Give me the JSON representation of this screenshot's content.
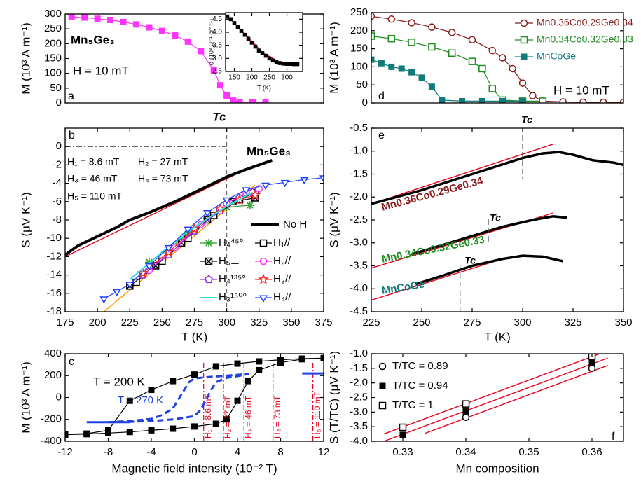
{
  "chart_data": [
    {
      "type": "line",
      "y_label": "M (10³ A m⁻¹)",
      "xlim": [
        175,
        375
      ],
      "ylim": [
        0,
        300
      ],
      "yticks": [
        0,
        50,
        100,
        150,
        200,
        250,
        300
      ],
      "annotations": [
        "Mn₅Ge₃",
        "H = 10 mT",
        "a"
      ],
      "series": [
        {
          "color": "#ff33ff",
          "marker": "square",
          "line": true,
          "x": [
            180,
            190,
            200,
            210,
            220,
            230,
            240,
            250,
            260,
            270,
            280,
            290,
            295,
            300,
            305,
            310,
            320,
            330
          ],
          "values": [
            290,
            288,
            284,
            280,
            273,
            265,
            255,
            243,
            228,
            207,
            175,
            110,
            60,
            25,
            8,
            3,
            2,
            1
          ]
        }
      ]
    },
    {
      "type": "scatter",
      "x_label": "T (K)",
      "y_label": "σ (10³ Ω⁻¹ cm⁻¹)",
      "xlim": [
        125,
        345
      ],
      "ylim": [
        2.5,
        4.75
      ],
      "xticks": [
        150,
        200,
        250,
        300
      ],
      "yticks": [
        2.5,
        {
          "value": 3,
          "label": "3.0"
        },
        3.5,
        {
          "value": 4,
          "label": "4.0"
        },
        4.5
      ],
      "ref_lines": {
        "x": 300
      },
      "fits": [
        {
          "color": "#e8001c",
          "x": [
            130,
            180,
            230,
            280,
            300
          ],
          "values": [
            4.62,
            3.95,
            3.22,
            2.85,
            2.8
          ]
        }
      ],
      "series": [
        {
          "color": "#000000",
          "marker": "square",
          "line": false,
          "x": [
            130,
            140,
            150,
            160,
            170,
            180,
            190,
            200,
            210,
            220,
            230,
            240,
            250,
            260,
            270,
            280,
            290,
            300,
            310,
            320,
            330
          ],
          "values": [
            4.6,
            4.5,
            4.35,
            4.2,
            4.05,
            3.9,
            3.75,
            3.6,
            3.45,
            3.3,
            3.2,
            3.1,
            3.0,
            2.92,
            2.86,
            2.82,
            2.8,
            2.79,
            2.79,
            2.78,
            2.78
          ]
        }
      ]
    },
    {
      "type": "line",
      "x_label": "T (K)",
      "y_label": "S (μV K⁻¹)",
      "xlim": [
        175,
        375
      ],
      "ylim": [
        -18,
        2
      ],
      "xticks": [
        175,
        200,
        225,
        250,
        275,
        300,
        325,
        350,
        375
      ],
      "yticks": [
        -18,
        -16,
        -14,
        -12,
        -10,
        -8,
        -6,
        -4,
        -2,
        0
      ],
      "annotations": [
        "b",
        "H₁ = 8.6 mT",
        "H₂ = 27 mT",
        "H₃ = 46 mT",
        "H₄ = 73 mT",
        "H₅ = 110 mT",
        "Mn₅Ge₃",
        "Tc"
      ],
      "ref_lines": {
        "x": 300,
        "y": 0
      },
      "fits": [
        {
          "color": "#e8001c",
          "x": [
            175,
            322
          ],
          "values": [
            -12,
            -2
          ]
        },
        {
          "color": "#ff9900",
          "x": [
            205,
            322
          ],
          "values": [
            -18,
            -4.2
          ]
        }
      ],
      "series": [
        {
          "name": "No H",
          "color": "#000000",
          "marker": "none",
          "line": true,
          "line_width": 4,
          "x": [
            175,
            185,
            200,
            215,
            225,
            240,
            250,
            260,
            275,
            290,
            300,
            315,
            325,
            335
          ],
          "values": [
            -11.8,
            -10.8,
            -9.8,
            -8.8,
            -8,
            -7.2,
            -6.6,
            -6,
            -5,
            -4,
            -3.3,
            -2.5,
            -2,
            -1.5
          ]
        },
        {
          "name": "H₄⁴⁵°",
          "color": "#2ca02c",
          "marker": "asterisk",
          "line": true,
          "x": [
            240,
            255,
            270,
            285,
            300,
            318
          ],
          "values": [
            -12.6,
            -11.2,
            -9.5,
            -7.8,
            -6.6,
            -6.4
          ]
        },
        {
          "name": "H₁//",
          "color": "#000000",
          "marker": "square-open",
          "line": true,
          "x": [
            230,
            250,
            270,
            290,
            310,
            322
          ],
          "values": [
            -14.8,
            -12.5,
            -10,
            -7.5,
            -5.8,
            -5
          ]
        },
        {
          "name": "H₅⊥",
          "color": "#000000",
          "marker": "cross-square",
          "line": true,
          "x": [
            225,
            245,
            265,
            285,
            305,
            322
          ],
          "values": [
            -15.2,
            -13,
            -10.5,
            -8,
            -6,
            -5.6
          ]
        },
        {
          "name": "H₂//",
          "color": "#ff33ff",
          "marker": "circle-open",
          "line": true,
          "x": [
            240,
            260,
            280,
            300,
            315,
            325
          ],
          "values": [
            -13.5,
            -11,
            -8.5,
            -6.2,
            -5,
            -4.6
          ]
        },
        {
          "name": "H₄¹³⁵°",
          "color": "#8a2be2",
          "marker": "pentagon-open",
          "line": true,
          "x": [
            235,
            255,
            275,
            295,
            310,
            320
          ],
          "values": [
            -14,
            -11.8,
            -9.2,
            -7,
            -5.6,
            -5
          ]
        },
        {
          "name": "H₃//",
          "color": "#ff2020",
          "marker": "star-open",
          "line": true,
          "x": [
            235,
            255,
            275,
            295,
            310,
            322
          ],
          "values": [
            -13.8,
            -11.5,
            -9,
            -6.8,
            -5.8,
            -5.3
          ]
        },
        {
          "name": "H₃¹⁸⁰°",
          "color": "#33dddd",
          "marker": "none",
          "line": true,
          "line_width": 2,
          "x": [
            225,
            250,
            275,
            300,
            320
          ],
          "values": [
            -14.5,
            -11.5,
            -8.8,
            -6.5,
            -5
          ]
        },
        {
          "name": "H₄//",
          "color": "#2040ff",
          "marker": "triangle-down-open",
          "line": true,
          "x": [
            205,
            215,
            225,
            240,
            255,
            270,
            285,
            300,
            315,
            330,
            345,
            360,
            375
          ],
          "values": [
            -16.6,
            -15.8,
            -15,
            -13,
            -11,
            -9,
            -7.2,
            -5.8,
            -4.7,
            -4.2,
            -3.9,
            -3.6,
            -3.4
          ]
        }
      ]
    },
    {
      "type": "line",
      "x_label": "Magnetic field intensity (10⁻² T)",
      "y_label": "M (10³ A m⁻¹)",
      "xlim": [
        -12,
        12
      ],
      "ylim": [
        -400,
        400
      ],
      "xticks": [
        -12,
        -8,
        -4,
        0,
        4,
        8,
        12
      ],
      "yticks": [
        -400,
        -200,
        0,
        200,
        400
      ],
      "annotations": [
        "c",
        "T = 200 K",
        "T = 270 K"
      ],
      "field_lines": [
        {
          "value": 0.86,
          "label": "H₁ = 8.6 mT"
        },
        {
          "value": 2.7,
          "label": "H₂ = 27 mT"
        },
        {
          "value": 4.6,
          "label": "H₃ = 46 mT"
        },
        {
          "value": 7.3,
          "label": "H₄ = 73 mT"
        },
        {
          "value": 11,
          "label": "H₅ = 110 mT"
        }
      ],
      "series": [
        {
          "color": "#000000",
          "marker": "square",
          "line": true,
          "x": [
            -12,
            -10,
            -8,
            -6,
            -4,
            -2,
            0,
            2,
            3,
            4,
            5,
            6,
            8,
            10,
            12,
            10,
            8,
            6,
            4,
            2,
            0,
            -2,
            -4,
            -6,
            -8,
            -10,
            -12
          ],
          "values": [
            -340,
            -335,
            -325,
            -315,
            -300,
            -285,
            -265,
            -240,
            -200,
            -30,
            150,
            250,
            320,
            350,
            360,
            355,
            345,
            330,
            310,
            285,
            210,
            150,
            70,
            -30,
            -300,
            -330,
            -335
          ]
        },
        {
          "color": "#2040e0",
          "marker": "none",
          "line": true,
          "dash": true,
          "line_width": 3,
          "x": [
            -8,
            -6,
            -4,
            -2,
            0,
            0.5,
            1,
            1.5,
            2,
            3,
            4,
            5,
            3,
            1,
            0,
            -0.5,
            -1,
            -1.5,
            -2,
            -3,
            -4,
            -6,
            -8
          ],
          "values": [
            -225,
            -222,
            -215,
            -200,
            -170,
            -120,
            -40,
            60,
            140,
            180,
            195,
            215,
            200,
            185,
            175,
            140,
            60,
            -20,
            -100,
            -160,
            -195,
            -215,
            -225
          ]
        },
        {
          "color": "#2040e0",
          "marker": "none",
          "line": true,
          "line_width": 3,
          "x": [
            -10,
            -6,
            0,
            10,
            12
          ],
          "values": [
            -225,
            -225,
            null,
            220,
            220
          ]
        }
      ]
    },
    {
      "type": "line",
      "y_label": "M (10³ A m⁻¹)",
      "xlim": [
        225,
        350
      ],
      "ylim": [
        0,
        250
      ],
      "yticks": [
        0,
        50,
        100,
        150,
        200,
        250
      ],
      "annotations": [
        "d",
        "H = 10 mT"
      ],
      "legend": true,
      "series": [
        {
          "name": "Mn0.36Co0.29Ge0.34",
          "color": "#8b1a1a",
          "marker": "circle-open",
          "line": true,
          "x": [
            225,
            235,
            245,
            255,
            265,
            275,
            285,
            290,
            295,
            300,
            305,
            310,
            320,
            330,
            340,
            350
          ],
          "values": [
            240,
            232,
            222,
            210,
            195,
            175,
            145,
            125,
            95,
            55,
            20,
            5,
            3,
            2,
            2,
            2
          ]
        },
        {
          "name": "Mn0.34Co0.32Ge0.33",
          "color": "#1e8c1e",
          "marker": "square-open",
          "line": true,
          "x": [
            225,
            235,
            245,
            255,
            265,
            275,
            280,
            285,
            290,
            300,
            310
          ],
          "values": [
            185,
            178,
            168,
            155,
            138,
            115,
            95,
            40,
            8,
            5,
            5
          ]
        },
        {
          "name": "MnCoGe",
          "color": "#117a7a",
          "marker": "square",
          "line": true,
          "x": [
            225,
            230,
            235,
            240,
            245,
            250,
            255,
            260,
            270,
            280,
            290,
            300
          ],
          "values": [
            120,
            110,
            100,
            95,
            85,
            70,
            45,
            8,
            5,
            5,
            5,
            5
          ]
        }
      ]
    },
    {
      "type": "line",
      "x_label": "T (K)",
      "y_label": "S (μV K⁻¹)",
      "xlim": [
        225,
        350
      ],
      "ylim": [
        -4.5,
        -0.5
      ],
      "xticks": [
        225,
        250,
        275,
        300,
        325,
        350
      ],
      "yticks": [
        -4.5,
        {
          "value": -4,
          "label": "-4.0"
        },
        -3.5,
        {
          "value": -3,
          "label": "-3.0"
        },
        -2.5,
        {
          "value": -2,
          "label": "-2.0"
        },
        -1.5,
        {
          "value": -1,
          "label": "-1.0"
        },
        -0.5
      ],
      "annotations": [
        "e"
      ],
      "tc_markers": [
        {
          "x": 300,
          "label": "Tc"
        },
        {
          "x": 283,
          "label": "Tc"
        },
        {
          "x": 269,
          "label": "Tc"
        }
      ],
      "fits": [
        {
          "color": "#e8001c",
          "x": [
            225,
            315
          ],
          "values": [
            -2.15,
            -0.85
          ]
        },
        {
          "color": "#e8001c",
          "x": [
            225,
            315
          ],
          "values": [
            -3.55,
            -2.35
          ]
        },
        {
          "color": "#e8001c",
          "x": [
            225,
            290
          ],
          "values": [
            -4.25,
            -3.35
          ]
        }
      ],
      "series": [
        {
          "name": "Mn0.36Co0.29Ge0.34",
          "label_color": "#8b1a1a",
          "color": "#000000",
          "marker": "none",
          "line": true,
          "line_width": 3.5,
          "x": [
            225,
            250,
            275,
            300,
            310,
            318,
            325,
            335,
            345,
            350
          ],
          "values": [
            -2.15,
            -1.85,
            -1.5,
            -1.15,
            -1.05,
            -1.02,
            -1.08,
            -1.2,
            -1.25,
            -1.3
          ]
        },
        {
          "name": "Mn0.34Co0.32Ge0.33",
          "label_color": "#1e8c1e",
          "color": "#000000",
          "marker": "none",
          "line": true,
          "line_width": 3.5,
          "x": [
            245,
            260,
            275,
            290,
            305,
            315,
            322
          ],
          "values": [
            -3.25,
            -3.05,
            -2.85,
            -2.65,
            -2.5,
            -2.42,
            -2.45
          ]
        },
        {
          "name": "MnCoGe",
          "label_color": "#117a7a",
          "color": "#000000",
          "marker": "none",
          "line": true,
          "line_width": 3.5,
          "x": [
            247,
            260,
            275,
            290,
            300,
            310,
            320
          ],
          "values": [
            -3.9,
            -3.72,
            -3.5,
            -3.35,
            -3.28,
            -3.3,
            -3.4
          ]
        }
      ]
    },
    {
      "type": "scatter",
      "x_label": "Mn composition",
      "y_label": "S (T/TC) (μV K⁻¹)",
      "xlim": [
        0.325,
        0.365
      ],
      "ylim": [
        -4,
        -1
      ],
      "xticks": [
        0.33,
        0.34,
        0.35,
        0.36
      ],
      "yticks": [
        {
          "value": -4,
          "label": "-4.0"
        },
        -3.5,
        {
          "value": -3,
          "label": "-3.0"
        },
        -2.5,
        {
          "value": -2,
          "label": "-2.0"
        },
        -1.5,
        {
          "value": -1,
          "label": "-1.0"
        }
      ],
      "annotations": [
        "f"
      ],
      "legend": true,
      "fits": [
        {
          "color": "#e8001c",
          "x": [
            0.327,
            0.3625
          ],
          "values": [
            -3.75,
            -0.9
          ]
        },
        {
          "color": "#e8001c",
          "x": [
            0.327,
            0.3625
          ],
          "values": [
            -4,
            -1.15
          ]
        },
        {
          "color": "#e8001c",
          "x": [
            0.3335,
            0.3625
          ],
          "values": [
            -3.73,
            -1.4
          ]
        }
      ],
      "series": [
        {
          "name": "T/TC = 0.89",
          "color": "#000000",
          "marker": "circle-open",
          "line": false,
          "x": [
            0.34,
            0.36
          ],
          "values": [
            -3.18,
            -1.5
          ]
        },
        {
          "name": "T/TC = 0.94",
          "color": "#000000",
          "marker": "square",
          "line": false,
          "x": [
            0.33,
            0.34,
            0.36
          ],
          "values": [
            -3.78,
            -2.98,
            -1.3
          ]
        },
        {
          "name": "T/TC = 1",
          "color": "#000000",
          "marker": "square-open",
          "line": false,
          "x": [
            0.33,
            0.34,
            0.36
          ],
          "values": [
            -3.52,
            -2.72,
            -1.08
          ]
        }
      ]
    }
  ]
}
